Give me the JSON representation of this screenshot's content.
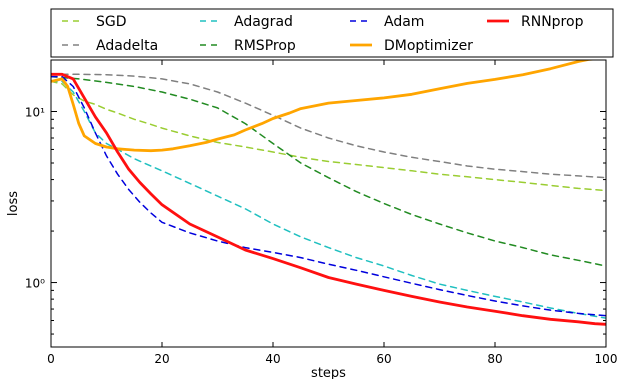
{
  "chart_data": {
    "type": "line",
    "title": "",
    "xlabel": "steps",
    "ylabel": "loss",
    "xlim": [
      0,
      100
    ],
    "ylim": [
      0.42,
      20
    ],
    "yscale": "log",
    "grid": false,
    "legend_placement": "top, above plot",
    "x_ticks": [
      0,
      20,
      40,
      60,
      80,
      100
    ],
    "x_tick_labels": [
      "0",
      "20",
      "40",
      "60",
      "80",
      "100"
    ],
    "y_ticks": [
      1,
      10
    ],
    "y_tick_labels": [
      "10⁰",
      "10¹"
    ],
    "series": [
      {
        "name": "SGD",
        "color": "#9acd32",
        "style": "dashed",
        "width": 1.5,
        "x": [
          0,
          2,
          4,
          6,
          8,
          10,
          12,
          15,
          18,
          20,
          25,
          30,
          35,
          40,
          45,
          50,
          55,
          60,
          65,
          70,
          75,
          80,
          85,
          90,
          95,
          100
        ],
        "y": [
          15,
          14.5,
          12.5,
          11.5,
          11,
          10.3,
          9.8,
          9,
          8.4,
          8,
          7.2,
          6.6,
          6.2,
          5.8,
          5.4,
          5.1,
          4.9,
          4.7,
          4.5,
          4.3,
          4.15,
          4,
          3.85,
          3.7,
          3.55,
          3.45
        ]
      },
      {
        "name": "Adadelta",
        "color": "#808080",
        "style": "dashed",
        "width": 1.5,
        "x": [
          0,
          5,
          10,
          15,
          20,
          25,
          30,
          35,
          40,
          45,
          50,
          55,
          60,
          65,
          70,
          75,
          80,
          85,
          90,
          95,
          100
        ],
        "y": [
          16.5,
          16.5,
          16.4,
          16.1,
          15.5,
          14.5,
          13,
          11.2,
          9.5,
          8,
          7,
          6.3,
          5.8,
          5.4,
          5.1,
          4.8,
          4.6,
          4.45,
          4.3,
          4.2,
          4.1
        ]
      },
      {
        "name": "Adagrad",
        "color": "#20c0c0",
        "style": "dashed",
        "width": 1.5,
        "x": [
          0,
          2,
          4,
          6,
          8,
          10,
          12,
          15,
          18,
          20,
          25,
          30,
          35,
          40,
          45,
          50,
          55,
          60,
          65,
          70,
          75,
          80,
          85,
          90,
          95,
          100
        ],
        "y": [
          15,
          15,
          13,
          10,
          7.5,
          6.5,
          6,
          5.3,
          4.8,
          4.5,
          3.8,
          3.2,
          2.7,
          2.2,
          1.85,
          1.6,
          1.4,
          1.25,
          1.1,
          0.98,
          0.9,
          0.83,
          0.77,
          0.71,
          0.66,
          0.62
        ]
      },
      {
        "name": "RMSProp",
        "color": "#228b22",
        "style": "dashed",
        "width": 1.5,
        "x": [
          0,
          5,
          10,
          15,
          20,
          25,
          30,
          35,
          40,
          45,
          50,
          55,
          60,
          65,
          70,
          75,
          80,
          85,
          90,
          95,
          100
        ],
        "y": [
          16,
          15.5,
          14.8,
          14,
          13,
          11.8,
          10.5,
          8.5,
          6.5,
          5,
          4.1,
          3.4,
          2.9,
          2.5,
          2.2,
          1.95,
          1.75,
          1.6,
          1.45,
          1.35,
          1.25
        ]
      },
      {
        "name": "Adam",
        "color": "#0000dd",
        "style": "dashed",
        "width": 1.5,
        "x": [
          0,
          2,
          4,
          6,
          8,
          10,
          12,
          14,
          16,
          18,
          20,
          25,
          30,
          35,
          40,
          45,
          50,
          55,
          60,
          65,
          70,
          75,
          80,
          85,
          90,
          95,
          100
        ],
        "y": [
          16,
          16,
          14,
          10.5,
          7.5,
          5.5,
          4.3,
          3.5,
          2.95,
          2.55,
          2.25,
          1.95,
          1.75,
          1.6,
          1.5,
          1.4,
          1.28,
          1.18,
          1.08,
          0.99,
          0.91,
          0.84,
          0.78,
          0.73,
          0.69,
          0.66,
          0.64
        ]
      },
      {
        "name": "DMoptimizer",
        "color": "#ffa500",
        "style": "solid",
        "width": 2.8,
        "x": [
          0,
          2,
          3,
          4,
          5,
          6,
          8,
          10,
          12,
          15,
          18,
          20,
          22,
          25,
          28,
          30,
          33,
          35,
          38,
          40,
          43,
          45,
          50,
          55,
          60,
          65,
          70,
          75,
          80,
          85,
          90,
          95,
          97,
          100
        ],
        "y": [
          15,
          15.5,
          14,
          11,
          8.5,
          7.2,
          6.5,
          6.2,
          6.05,
          5.95,
          5.9,
          5.95,
          6.05,
          6.3,
          6.6,
          6.9,
          7.3,
          7.8,
          8.5,
          9.1,
          9.8,
          10.4,
          11.2,
          11.6,
          12,
          12.6,
          13.6,
          14.6,
          15.4,
          16.4,
          17.8,
          19.6,
          20.2,
          20.5
        ]
      },
      {
        "name": "RNNprop",
        "color": "#ff1010",
        "style": "solid",
        "width": 2.8,
        "x": [
          0,
          2,
          4,
          6,
          8,
          10,
          12,
          14,
          16,
          18,
          20,
          25,
          30,
          35,
          40,
          45,
          50,
          55,
          60,
          65,
          70,
          75,
          80,
          85,
          90,
          95,
          98,
          100
        ],
        "y": [
          16.5,
          16.5,
          15.5,
          12,
          9.3,
          7.5,
          5.8,
          4.6,
          3.85,
          3.3,
          2.85,
          2.2,
          1.85,
          1.55,
          1.38,
          1.22,
          1.07,
          0.98,
          0.9,
          0.83,
          0.77,
          0.72,
          0.68,
          0.64,
          0.61,
          0.59,
          0.575,
          0.57
        ]
      }
    ]
  }
}
